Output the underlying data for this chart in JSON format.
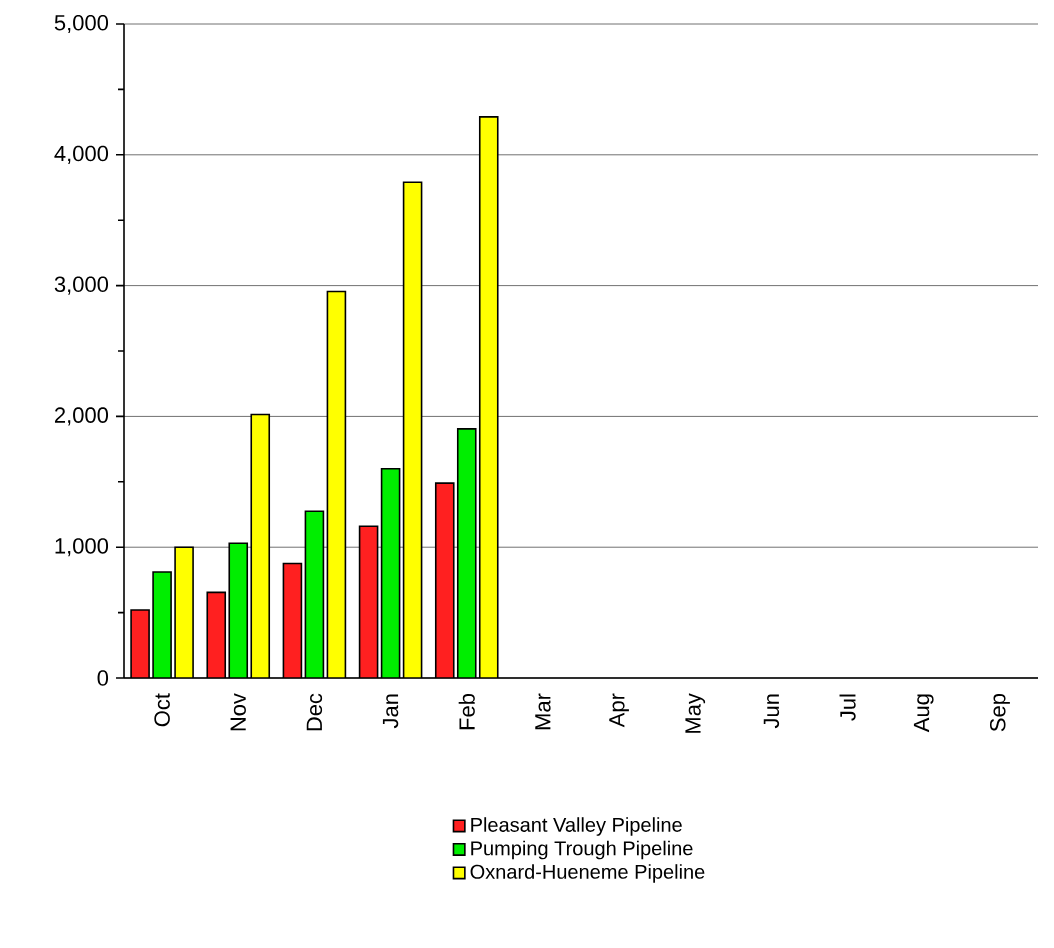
{
  "chart_data": {
    "type": "bar",
    "categories": [
      "Oct",
      "Nov",
      "Dec",
      "Jan",
      "Feb",
      "Mar",
      "Apr",
      "May",
      "Jun",
      "Jul",
      "Aug",
      "Sep"
    ],
    "series": [
      {
        "name": "Pleasant Valley Pipeline",
        "color": "#ff2020",
        "values": [
          520,
          655,
          875,
          1160,
          1490,
          null,
          null,
          null,
          null,
          null,
          null,
          null
        ]
      },
      {
        "name": "Pumping Trough Pipeline",
        "color": "#00ee00",
        "values": [
          810,
          1030,
          1275,
          1600,
          1905,
          null,
          null,
          null,
          null,
          null,
          null,
          null
        ]
      },
      {
        "name": "Oxnard-Hueneme Pipeline",
        "color": "#ffff00",
        "values": [
          1000,
          2015,
          2955,
          3790,
          4290,
          null,
          null,
          null,
          null,
          null,
          null,
          null
        ]
      }
    ],
    "ylim": [
      0,
      5000
    ],
    "yticks": [
      0,
      {
        "value": 500,
        "label": null
      },
      {
        "value": 1000,
        "label": "1,000"
      },
      {
        "value": 1500,
        "label": null
      },
      {
        "value": 2000,
        "label": "2,000"
      },
      {
        "value": 2500,
        "label": null
      },
      {
        "value": 3000,
        "label": "3,000"
      },
      {
        "value": 3500,
        "label": null
      },
      {
        "value": 4000,
        "label": "4,000"
      },
      {
        "value": 4500,
        "label": null
      },
      {
        "value": 5000,
        "label": "5,000"
      }
    ],
    "grid": "y",
    "legend": "bottom"
  }
}
